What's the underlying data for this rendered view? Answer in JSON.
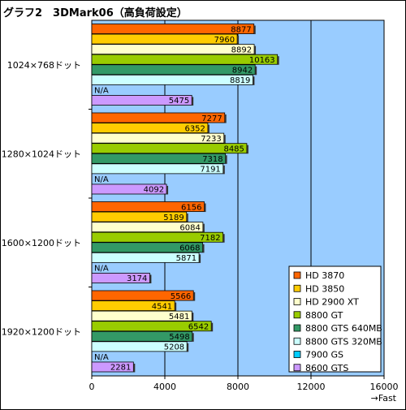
{
  "chart_data": {
    "type": "bar",
    "orientation": "horizontal",
    "title": "グラフ2　3DMark06（高負荷設定）",
    "categories": [
      "1024×768ドット",
      "1280×1024ドット",
      "1600×1200ドット",
      "1920×1200ドット"
    ],
    "series": [
      {
        "name": "HD 3870",
        "color": "#ff6600",
        "values": [
          8877,
          7277,
          6156,
          5566
        ]
      },
      {
        "name": "HD 3850",
        "color": "#ffcc00",
        "values": [
          7960,
          6352,
          5189,
          4541
        ]
      },
      {
        "name": "HD 2900 XT",
        "color": "#ffffcc",
        "values": [
          8892,
          7233,
          6084,
          5481
        ]
      },
      {
        "name": "8800 GT",
        "color": "#99cc00",
        "values": [
          10163,
          8485,
          7182,
          6542
        ]
      },
      {
        "name": "8800 GTS 640MB",
        "color": "#339966",
        "values": [
          8942,
          7318,
          6068,
          5498
        ]
      },
      {
        "name": "8800 GTS 320MB",
        "color": "#ccffff",
        "values": [
          8819,
          7191,
          5871,
          5208
        ]
      },
      {
        "name": "7900 GS",
        "color": "#00ccff",
        "values": [
          null,
          null,
          null,
          null
        ],
        "value_labels": [
          "N/A",
          "N/A",
          "N/A",
          "N/A"
        ]
      },
      {
        "name": "8600 GTS",
        "color": "#cc99ff",
        "values": [
          5475,
          4092,
          3174,
          2281
        ]
      }
    ],
    "xlim": [
      0,
      16000
    ],
    "xticks": [
      "0",
      "4000",
      "8000",
      "12000",
      "16000"
    ],
    "xlabel": "→Fast",
    "plot_background": "#99ccff",
    "grid": "vertical",
    "legend_position": "bottom-right"
  }
}
